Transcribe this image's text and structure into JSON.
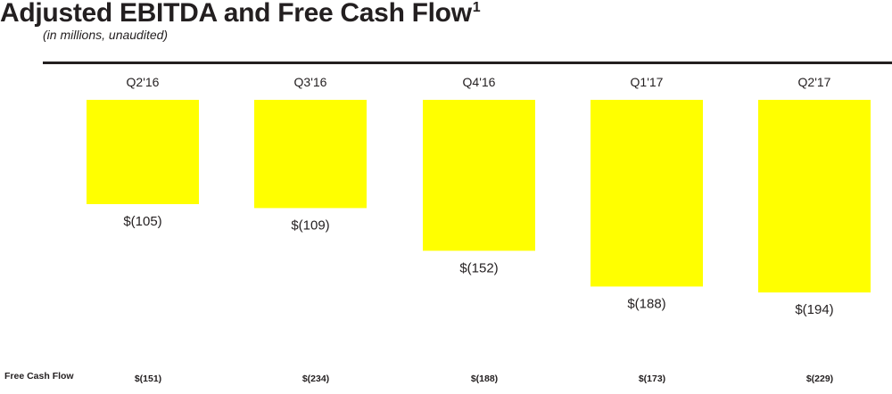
{
  "header": {
    "title": "Adjusted EBITDA and Free Cash Flow",
    "title_footnote": "1",
    "subtitle": "(in millions, unaudited)"
  },
  "colors": {
    "bar": "#ffff00",
    "text": "#231f20",
    "rule": "#231f20"
  },
  "chart_data": {
    "type": "bar",
    "title": "Adjusted EBITDA and Free Cash Flow",
    "categories": [
      "Q2'16",
      "Q3'16",
      "Q4'16",
      "Q1'17",
      "Q2'17"
    ],
    "series": [
      {
        "name": "Adjusted EBITDA",
        "values": [
          -105,
          -109,
          -152,
          -188,
          -194
        ],
        "labels": [
          "$(105)",
          "$(109)",
          "$(152)",
          "$(188)",
          "$(194)"
        ]
      }
    ],
    "free_cash_flow": {
      "label": "Free Cash Flow",
      "values": [
        -151,
        -234,
        -188,
        -173,
        -229
      ],
      "labels": [
        "$(151)",
        "$(234)",
        "$(188)",
        "$(173)",
        "$(229)"
      ]
    },
    "ylim": [
      -200,
      0
    ],
    "grid": false,
    "legend": "none"
  }
}
